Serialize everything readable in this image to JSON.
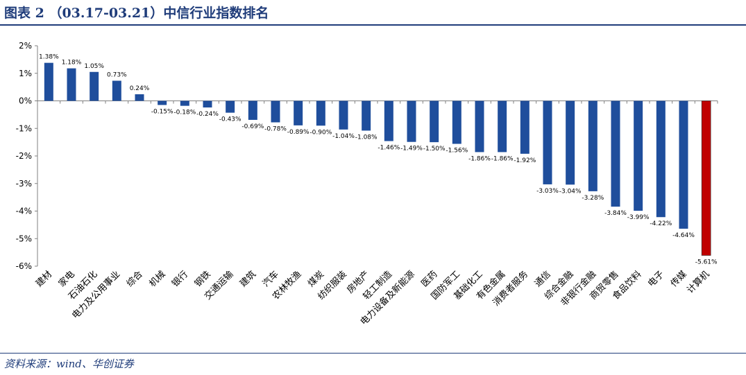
{
  "header": {
    "title": "图表 2    （03.17-03.21）中信行业指数排名"
  },
  "footer": {
    "source": "资料来源：wind、华创证券"
  },
  "chart_data": {
    "type": "bar",
    "title": "",
    "xlabel": "",
    "ylabel": "",
    "ylim": [
      -6,
      2
    ],
    "yticks": [
      "2%",
      "1%",
      "0%",
      "-1%",
      "-2%",
      "-3%",
      "-4%",
      "-5%",
      "-6%"
    ],
    "ytick_values": [
      2,
      1,
      0,
      -1,
      -2,
      -3,
      -4,
      -5,
      -6
    ],
    "categories": [
      "建材",
      "家电",
      "石油石化",
      "电力及公用事业",
      "综合",
      "机械",
      "银行",
      "钢铁",
      "交通运输",
      "建筑",
      "汽车",
      "农林牧渔",
      "煤炭",
      "纺织服装",
      "房地产",
      "轻工制造",
      "电力设备及新能源",
      "医药",
      "国防军工",
      "基础化工",
      "有色金属",
      "消费者服务",
      "通信",
      "综合金融",
      "非银行金融",
      "商贸零售",
      "食品饮料",
      "电子",
      "传媒",
      "计算机"
    ],
    "values": [
      1.38,
      1.18,
      1.05,
      0.73,
      0.24,
      -0.15,
      -0.18,
      -0.24,
      -0.43,
      -0.69,
      -0.78,
      -0.89,
      -0.9,
      -1.04,
      -1.08,
      -1.46,
      -1.49,
      -1.5,
      -1.56,
      -1.86,
      -1.86,
      -1.92,
      -3.03,
      -3.04,
      -3.28,
      -3.84,
      -3.99,
      -4.22,
      -4.64,
      -5.61
    ],
    "data_labels": [
      "1.38%",
      "1.18%",
      "1.05%",
      "0.73%",
      "0.24%",
      "-0.15%",
      "-0.18%",
      "-0.24%",
      "-0.43%",
      "-0.69%",
      "-0.78%",
      "-0.89%",
      "-0.90%",
      "-1.04%",
      "-1.08%",
      "-1.46%",
      "-1.49%",
      "-1.50%",
      "-1.56%",
      "-1.86%",
      "-1.86%",
      "-1.92%",
      "-3.03%",
      "-3.04%",
      "-3.28%",
      "-3.84%",
      "-3.99%",
      "-4.22%",
      "-4.64%",
      "-5.61%"
    ],
    "bar_color": "#1f4e9c",
    "highlight_color": "#c00000",
    "highlight_index": 29,
    "grid": false,
    "legend": "none"
  }
}
